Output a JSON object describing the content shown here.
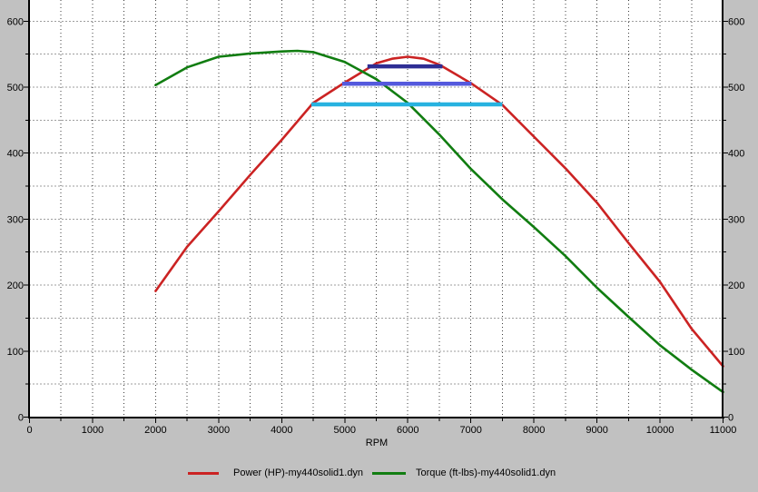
{
  "window": {
    "background_color": "#c1c1c1",
    "plot_background_color": "#ffffff",
    "grid_color": "#3c3c3c",
    "axis_color": "#000000",
    "text_color": "#000000"
  },
  "chart_data": {
    "type": "line",
    "title": "",
    "xlabel": "RPM",
    "ylabel": "",
    "xlim": [
      0,
      11000
    ],
    "ylim": [
      0,
      632
    ],
    "grid": "dotted minor+major, both directions",
    "legend_position": "bottom",
    "x_major_ticks": [
      0,
      1000,
      2000,
      3000,
      4000,
      5000,
      6000,
      7000,
      8000,
      9000,
      10000,
      11000
    ],
    "x_minor_step": 500,
    "y_major_ticks": [
      0,
      100,
      200,
      300,
      400,
      500,
      600
    ],
    "y_minor_step": 50,
    "y_axis_sides": "left and right, same labels",
    "series": [
      {
        "name": "Power (HP)-my440solid1.dyn",
        "data_name": "power-curve",
        "color": "#cb2323",
        "x": [
          2000,
          2500,
          3000,
          3500,
          4000,
          4500,
          5000,
          5500,
          5750,
          6000,
          6250,
          6500,
          7000,
          7500,
          8000,
          8500,
          9000,
          9500,
          10000,
          10500,
          11000
        ],
        "values": [
          191,
          258,
          312,
          367,
          420,
          476,
          507,
          536,
          543,
          546,
          543,
          534,
          506,
          473,
          425,
          377,
          325,
          264,
          205,
          134,
          77
        ]
      },
      {
        "name": "Torque (ft-lbs)-my440solid1.dyn",
        "data_name": "torque-curve",
        "color": "#117d11",
        "x": [
          2000,
          2500,
          3000,
          3500,
          4000,
          4250,
          4500,
          5000,
          5500,
          6000,
          6500,
          7000,
          7500,
          8000,
          8500,
          9000,
          9500,
          10000,
          10500,
          11000
        ],
        "values": [
          503,
          530,
          546,
          551,
          554,
          555,
          553,
          538,
          512,
          476,
          428,
          376,
          330,
          288,
          244,
          196,
          152,
          109,
          72,
          38
        ]
      }
    ],
    "bands": [
      {
        "data_name": "band-dark-blue",
        "color": "#2e2e94",
        "value": 531.5,
        "rpm_start": 5360,
        "rpm_end": 6550
      },
      {
        "data_name": "band-blue",
        "color": "#5459dd",
        "value": 505.2,
        "rpm_start": 4960,
        "rpm_end": 7010
      },
      {
        "data_name": "band-cyan",
        "color": "#27b2e0",
        "value": 473.8,
        "rpm_start": 4470,
        "rpm_end": 7500
      }
    ]
  }
}
